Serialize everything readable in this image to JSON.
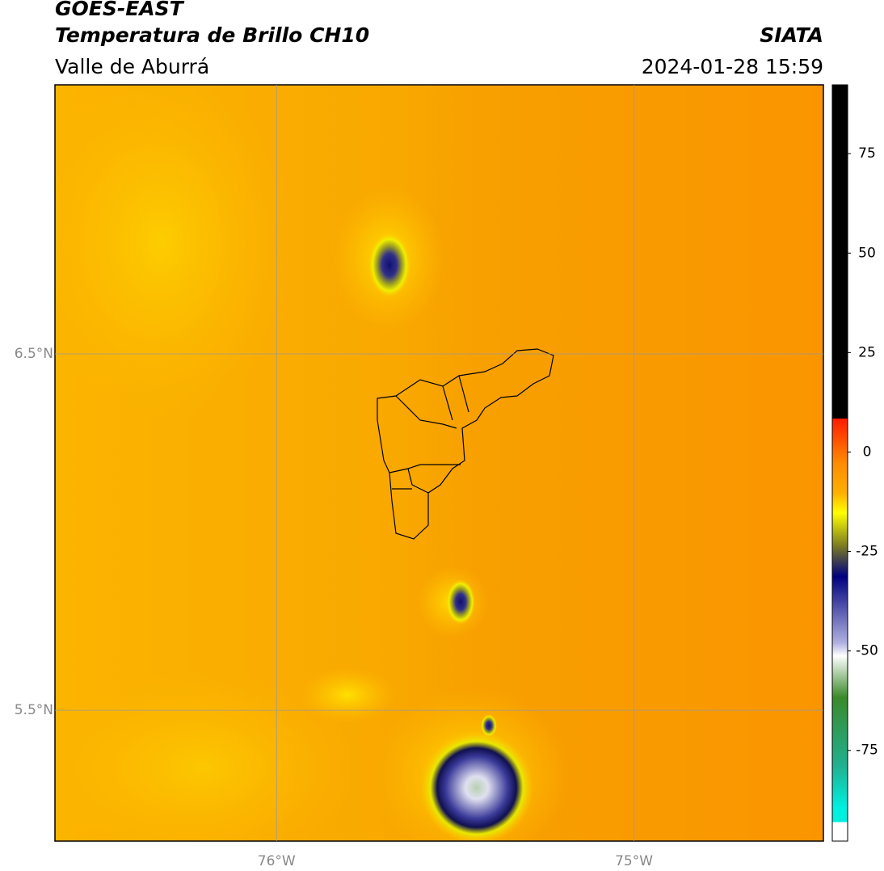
{
  "header": {
    "source": "GOES-EAST",
    "product": "Temperatura de Brillo CH10",
    "region": "Valle de Aburrá",
    "agency": "SIATA",
    "datetime": "2024-01-28 15:59"
  },
  "map": {
    "lon_range": [
      -76.62,
      -74.47
    ],
    "lat_range": [
      5.133,
      7.255
    ],
    "lon_ticks": [
      {
        "value": -76,
        "label": "76°W"
      },
      {
        "value": -75,
        "label": "75°W"
      }
    ],
    "lat_ticks": [
      {
        "value": 6.5,
        "label": "6.5°N"
      },
      {
        "value": 5.5,
        "label": "5.5°N"
      }
    ]
  },
  "colorbar": {
    "range": [
      -97.8,
      92.3
    ],
    "ticks": [
      75,
      50,
      25,
      0,
      -25,
      -50,
      -75
    ]
  }
}
